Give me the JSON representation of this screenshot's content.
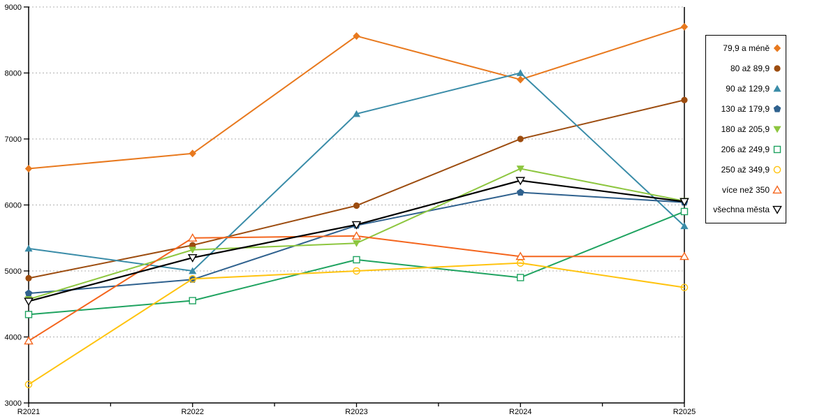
{
  "chart_data": {
    "type": "line",
    "categories": [
      "R2021",
      "R2022",
      "R2023",
      "R2024",
      "R2025"
    ],
    "series": [
      {
        "name": "79,9 a méně",
        "color": "#E8791E",
        "marker": "diamond",
        "marker_style": "filled",
        "values": [
          6550,
          6780,
          8560,
          7900,
          8700
        ]
      },
      {
        "name": "80 až 89,9",
        "color": "#9C4C0F",
        "marker": "circle",
        "marker_style": "filled",
        "values": [
          4890,
          5390,
          5990,
          7000,
          7590
        ]
      },
      {
        "name": "90 až 129,9",
        "color": "#3A8CA8",
        "marker": "triangle-up",
        "marker_style": "filled",
        "values": [
          5340,
          5000,
          7380,
          8000,
          5680
        ]
      },
      {
        "name": "130 až 179,9",
        "color": "#2F618E",
        "marker": "pentagon",
        "marker_style": "filled",
        "values": [
          4660,
          4870,
          5690,
          6190,
          6040
        ]
      },
      {
        "name": "180 až 205,9",
        "color": "#8DC63F",
        "marker": "triangle-down",
        "marker_style": "filled",
        "values": [
          4570,
          5320,
          5420,
          6550,
          6060
        ]
      },
      {
        "name": "206 až 249,9",
        "color": "#1FA360",
        "marker": "square",
        "marker_style": "open",
        "values": [
          4340,
          4550,
          5170,
          4900,
          5900
        ]
      },
      {
        "name": "250 až 349,9",
        "color": "#FFC30F",
        "marker": "circle",
        "marker_style": "open",
        "values": [
          3280,
          4880,
          5000,
          5120,
          4750
        ]
      },
      {
        "name": "více než 350",
        "color": "#F4651D",
        "marker": "triangle-up",
        "marker_style": "open",
        "values": [
          3940,
          5500,
          5530,
          5220,
          5220
        ]
      },
      {
        "name": "všechna města",
        "color": "#000000",
        "marker": "triangle-down",
        "marker_style": "open",
        "values": [
          4540,
          5200,
          5700,
          6370,
          6050
        ]
      }
    ],
    "title": "",
    "xlabel": "",
    "ylabel": "",
    "ylim": [
      3000,
      9000
    ],
    "ytick_step": 1000,
    "y_tick_labels": [
      "3000",
      "4000",
      "5000",
      "6000",
      "7000",
      "8000",
      "9000"
    ],
    "x_tick_labels": [
      "R2021",
      "R2022",
      "R2023",
      "R2024",
      "R2025"
    ],
    "grid": "horizontal-dotted",
    "legend_position": "right"
  },
  "colors": {
    "background": "#FFFFFF",
    "axis": "#000000",
    "gridline": "#B0B0B0",
    "tick_label": "#000000"
  }
}
